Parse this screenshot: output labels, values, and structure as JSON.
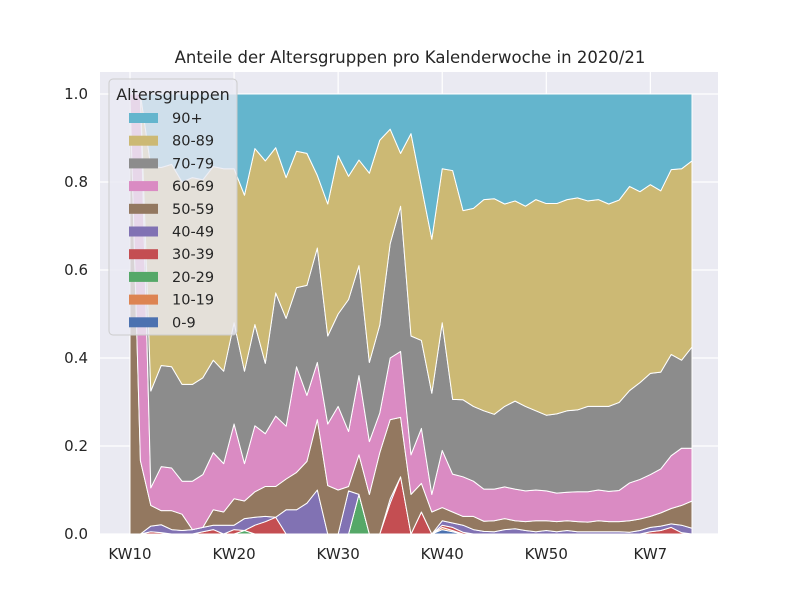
{
  "chart_data": {
    "type": "area",
    "stacked": true,
    "normalized": true,
    "title": "Anteile der Altersgruppen pro Kalenderwoche in 2020/21",
    "xlabel": "",
    "ylabel": "",
    "ylim": [
      0,
      1.05
    ],
    "yticks": [
      0.0,
      0.2,
      0.4,
      0.6,
      0.8,
      1.0
    ],
    "ytick_labels": [
      "0.0",
      "0.2",
      "0.4",
      "0.6",
      "0.8",
      "1.0"
    ],
    "x_tick_labels": [
      {
        "label": "KW10",
        "index": 0
      },
      {
        "label": "KW20",
        "index": 10
      },
      {
        "label": "KW30",
        "index": 20
      },
      {
        "label": "KW40",
        "index": 30
      },
      {
        "label": "KW50",
        "index": 40
      },
      {
        "label": "KW7",
        "index": 50
      }
    ],
    "grid": true,
    "background": "#eaeaf2",
    "legend": {
      "title": "Altersgruppen",
      "placement": "upper-left"
    },
    "x": [
      "KW10",
      "KW11",
      "KW12",
      "KW13",
      "KW14",
      "KW15",
      "KW16",
      "KW17",
      "KW18",
      "KW19",
      "KW20",
      "KW21",
      "KW22",
      "KW23",
      "KW24",
      "KW25",
      "KW26",
      "KW27",
      "KW28",
      "KW29",
      "KW30",
      "KW31",
      "KW32",
      "KW33",
      "KW34",
      "KW35",
      "KW36",
      "KW37",
      "KW38",
      "KW39",
      "KW40",
      "KW41",
      "KW42",
      "KW43",
      "KW44",
      "KW45",
      "KW46",
      "KW47",
      "KW48",
      "KW49",
      "KW50",
      "KW51",
      "KW52",
      "KW53",
      "KW1",
      "KW2",
      "KW3",
      "KW4",
      "KW5",
      "KW6",
      "KW7",
      "KW8",
      "KW9",
      "KW10",
      "KW11"
    ],
    "series": [
      {
        "name": "0-9",
        "color": "#4c72b0",
        "values": [
          0,
          0,
          0,
          0,
          0,
          0,
          0,
          0,
          0,
          0,
          0,
          0,
          0,
          0,
          0,
          0,
          0,
          0,
          0,
          0,
          0,
          0,
          0,
          0,
          0,
          0,
          0,
          0,
          0,
          0,
          0.01,
          0.005,
          0,
          0,
          0,
          0,
          0,
          0,
          0,
          0,
          0,
          0,
          0,
          0,
          0,
          0,
          0,
          0,
          0,
          0,
          0,
          0,
          0,
          0,
          0
        ]
      },
      {
        "name": "10-19",
        "color": "#dd8452",
        "values": [
          0,
          0,
          0,
          0,
          0,
          0,
          0,
          0,
          0,
          0,
          0,
          0,
          0,
          0,
          0,
          0,
          0,
          0,
          0,
          0,
          0,
          0,
          0,
          0,
          0,
          0,
          0,
          0,
          0,
          0,
          0.005,
          0.003,
          0,
          0,
          0,
          0,
          0,
          0,
          0,
          0,
          0,
          0,
          0,
          0,
          0,
          0,
          0,
          0,
          0,
          0,
          0,
          0,
          0,
          0,
          0
        ]
      },
      {
        "name": "20-29",
        "color": "#55a868",
        "values": [
          0,
          0,
          0,
          0,
          0,
          0,
          0,
          0,
          0,
          0,
          0,
          0.008,
          0,
          0,
          0,
          0,
          0,
          0,
          0,
          0,
          0,
          0,
          0.09,
          0,
          0,
          0,
          0,
          0,
          0,
          0,
          0,
          0,
          0,
          0,
          0,
          0,
          0,
          0,
          0,
          0,
          0,
          0,
          0,
          0,
          0,
          0,
          0,
          0,
          0,
          0,
          0,
          0,
          0,
          0,
          0
        ]
      },
      {
        "name": "30-39",
        "color": "#c44e52",
        "values": [
          0,
          0,
          0.005,
          0.003,
          0,
          0,
          0,
          0.005,
          0.01,
          0,
          0.01,
          0,
          0.02,
          0.028,
          0.038,
          0,
          0,
          0,
          0,
          0,
          0,
          0,
          0,
          0,
          0,
          0.07,
          0.13,
          0,
          0.05,
          0,
          0.005,
          0.007,
          0.004,
          0,
          0,
          0,
          0,
          0,
          0,
          0,
          0,
          0,
          0,
          0,
          0,
          0,
          0,
          0,
          0,
          0,
          0.005,
          0.008,
          0.015,
          0.003,
          0
        ]
      },
      {
        "name": "40-49",
        "color": "#8172b3",
        "values": [
          0,
          0,
          0.013,
          0.018,
          0.01,
          0.008,
          0.01,
          0.01,
          0.01,
          0.02,
          0.01,
          0.027,
          0.018,
          0.012,
          0,
          0.055,
          0.055,
          0.07,
          0.1,
          0,
          0,
          0.098,
          0,
          0,
          0,
          0.01,
          0,
          0,
          0,
          0,
          0.01,
          0.01,
          0.016,
          0.01,
          0.006,
          0.005,
          0.01,
          0.012,
          0.008,
          0.005,
          0.008,
          0.005,
          0.008,
          0.005,
          0.005,
          0.005,
          0.005,
          0.005,
          0.004,
          0.008,
          0.01,
          0.01,
          0.008,
          0.017,
          0.013
        ]
      },
      {
        "name": "50-59",
        "color": "#937860",
        "values": [
          0.6,
          0.025,
          0.047,
          0.032,
          0.043,
          0.037,
          0,
          0,
          0.035,
          0.03,
          0.06,
          0.04,
          0.058,
          0.068,
          0.07,
          0.07,
          0.085,
          0.095,
          0.16,
          0.11,
          0.1,
          0.01,
          0.09,
          0.09,
          0.185,
          0.18,
          0.135,
          0.09,
          0.065,
          0.05,
          0.03,
          0.025,
          0.02,
          0.03,
          0.023,
          0.025,
          0.025,
          0.018,
          0.02,
          0.025,
          0.022,
          0.023,
          0.022,
          0.023,
          0.022,
          0.025,
          0.023,
          0.023,
          0.026,
          0.026,
          0.025,
          0.03,
          0.035,
          0.045,
          0.062
        ]
      },
      {
        "name": "60-69",
        "color": "#da8bc3",
        "values": [
          0,
          0.125,
          0.04,
          0.1,
          0.097,
          0.075,
          0.11,
          0.12,
          0.13,
          0.11,
          0.17,
          0.085,
          0.15,
          0.12,
          0.16,
          0.12,
          0.24,
          0.15,
          0.13,
          0.14,
          0.19,
          0.125,
          0.18,
          0.12,
          0.09,
          0.14,
          0.15,
          0.09,
          0.125,
          0.04,
          0.13,
          0.086,
          0.09,
          0.08,
          0.073,
          0.072,
          0.072,
          0.072,
          0.07,
          0.07,
          0.068,
          0.065,
          0.065,
          0.068,
          0.069,
          0.07,
          0.069,
          0.071,
          0.086,
          0.09,
          0.095,
          0.1,
          0.12,
          0.13,
          0.12
        ]
      },
      {
        "name": "70-79",
        "color": "#8c8c8c",
        "values": [
          0,
          0,
          0.22,
          0.23,
          0.23,
          0.22,
          0.22,
          0.22,
          0.21,
          0.21,
          0.23,
          0.21,
          0.23,
          0.16,
          0.28,
          0.245,
          0.18,
          0.25,
          0.26,
          0.2,
          0.21,
          0.3,
          0.25,
          0.18,
          0.2,
          0.26,
          0.33,
          0.27,
          0.2,
          0.23,
          0.29,
          0.17,
          0.175,
          0.17,
          0.178,
          0.17,
          0.183,
          0.2,
          0.192,
          0.18,
          0.172,
          0.18,
          0.185,
          0.186,
          0.194,
          0.19,
          0.193,
          0.2,
          0.21,
          0.22,
          0.23,
          0.22,
          0.23,
          0.2,
          0.23
        ]
      },
      {
        "name": "80-89",
        "color": "#ccb974",
        "values": [
          0,
          0,
          0.51,
          0.45,
          0.46,
          0.46,
          0.47,
          0.45,
          0.44,
          0.46,
          0.35,
          0.4,
          0.4,
          0.46,
          0.33,
          0.32,
          0.31,
          0.3,
          0.165,
          0.3,
          0.36,
          0.28,
          0.24,
          0.43,
          0.42,
          0.26,
          0.12,
          0.46,
          0.35,
          0.35,
          0.35,
          0.52,
          0.43,
          0.45,
          0.48,
          0.49,
          0.46,
          0.455,
          0.455,
          0.48,
          0.481,
          0.478,
          0.48,
          0.482,
          0.467,
          0.47,
          0.46,
          0.46,
          0.464,
          0.434,
          0.429,
          0.412,
          0.42,
          0.435,
          0.423
        ]
      },
      {
        "name": "90+",
        "color": "#64b5cd",
        "values": [
          0,
          0,
          0.165,
          0.167,
          0.16,
          0.2,
          0.19,
          0.195,
          0.165,
          0.17,
          0.17,
          0.23,
          0.124,
          0.152,
          0.122,
          0.19,
          0.13,
          0.135,
          0.185,
          0.25,
          0.14,
          0.187,
          0.15,
          0.18,
          0.105,
          0.08,
          0.135,
          0.09,
          0.21,
          0.33,
          0.17,
          0.174,
          0.265,
          0.26,
          0.24,
          0.238,
          0.25,
          0.243,
          0.255,
          0.24,
          0.249,
          0.249,
          0.24,
          0.236,
          0.243,
          0.24,
          0.25,
          0.241,
          0.21,
          0.222,
          0.206,
          0.22,
          0.172,
          0.17,
          0.152
        ]
      }
    ]
  }
}
